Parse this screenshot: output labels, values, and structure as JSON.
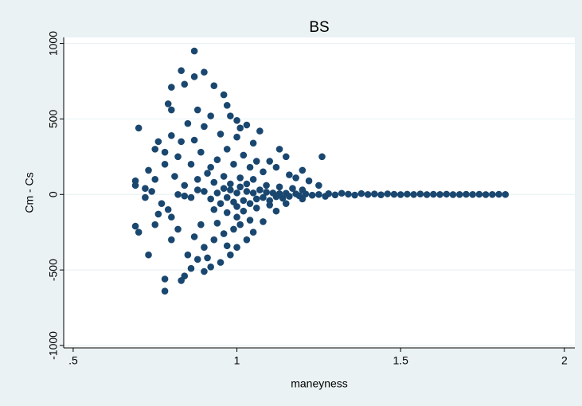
{
  "chart_data": {
    "type": "scatter",
    "title": "BS",
    "x_label": "maneyness",
    "y_label": "Cm - Cs",
    "color": "#1a476f",
    "grid": true,
    "xlim": [
      0.471,
      2.032
    ],
    "ylim": [
      -1016,
      1040
    ],
    "xticks": [
      {
        "value": 0.5,
        "label": ".5"
      },
      1,
      1.5,
      2
    ],
    "yticks": [
      -1000,
      -500,
      0,
      500,
      1000
    ],
    "x": [
      0.87,
      0.83,
      0.9,
      0.87,
      0.8,
      0.84,
      0.93,
      0.96,
      0.79,
      0.8,
      0.88,
      0.97,
      0.92,
      0.98,
      1.0,
      1.03,
      1.01,
      1.07,
      0.85,
      0.9,
      0.87,
      0.83,
      0.76,
      0.7,
      0.78,
      0.75,
      0.8,
      0.95,
      1.0,
      1.05,
      1.13,
      1.15,
      1.26,
      1.1,
      1.2,
      0.82,
      0.86,
      0.89,
      0.92,
      0.94,
      0.97,
      0.99,
      1.02,
      1.04,
      1.06,
      1.08,
      1.12,
      1.16,
      1.18,
      1.22,
      1.25,
      0.81,
      0.84,
      0.88,
      0.91,
      0.93,
      0.96,
      0.98,
      1.01,
      1.03,
      1.05,
      1.09,
      1.13,
      1.17,
      1.2,
      0.69,
      0.69,
      0.72,
      0.73,
      0.74,
      0.77,
      0.79,
      0.78,
      0.8,
      0.76,
      0.72,
      0.75,
      0.9,
      0.92,
      0.94,
      0.95,
      0.96,
      0.97,
      0.98,
      0.99,
      1.0,
      1.0,
      1.01,
      1.02,
      1.03,
      1.04,
      1.05,
      1.06,
      1.07,
      1.08,
      1.09,
      1.1,
      1.11,
      1.12,
      1.13,
      1.14,
      1.15,
      1.16,
      1.18,
      1.19,
      1.21,
      1.23,
      0.86,
      0.88,
      0.84,
      0.82,
      0.93,
      0.97,
      1.0,
      1.02,
      1.06,
      1.1,
      0.78,
      0.78,
      0.83,
      0.84,
      0.86,
      0.9,
      0.92,
      0.73,
      0.69,
      0.7,
      0.75,
      0.8,
      0.85,
      0.88,
      0.95,
      0.98,
      1.0,
      1.03,
      1.05,
      1.08,
      1.12,
      0.82,
      0.87,
      0.9,
      0.93,
      0.96,
      0.99,
      1.01,
      1.04,
      0.89,
      0.94,
      0.91,
      0.97,
      1.15,
      1.2,
      1.25,
      1.28,
      1.3,
      1.32,
      1.34,
      1.36,
      1.38,
      1.4,
      1.42,
      1.44,
      1.46,
      1.48,
      1.5,
      1.52,
      1.54,
      1.56,
      1.58,
      1.6,
      1.62,
      1.64,
      1.66,
      1.68,
      1.7,
      1.72,
      1.74,
      1.76,
      1.78,
      1.8,
      1.82,
      1.27
    ],
    "values": [
      950,
      820,
      810,
      780,
      710,
      730,
      720,
      660,
      600,
      560,
      560,
      590,
      520,
      520,
      490,
      460,
      440,
      420,
      470,
      450,
      360,
      350,
      350,
      440,
      280,
      300,
      390,
      400,
      380,
      340,
      300,
      250,
      250,
      220,
      160,
      250,
      200,
      280,
      180,
      230,
      300,
      200,
      260,
      180,
      220,
      150,
      180,
      130,
      110,
      90,
      60,
      120,
      60,
      100,
      140,
      80,
      120,
      70,
      110,
      70,
      100,
      60,
      50,
      40,
      30,
      90,
      60,
      40,
      160,
      20,
      -60,
      -100,
      200,
      -150,
      -130,
      -20,
      100,
      20,
      -30,
      10,
      -60,
      40,
      -20,
      30,
      -50,
      10,
      -80,
      50,
      -40,
      20,
      -60,
      10,
      -30,
      30,
      -20,
      15,
      -40,
      10,
      -15,
      5,
      -25,
      8,
      -12,
      4,
      -8,
      3,
      -5,
      -20,
      30,
      -10,
      0,
      -100,
      -120,
      -150,
      -110,
      -90,
      -70,
      -640,
      -560,
      -570,
      -540,
      -490,
      -510,
      -480,
      -400,
      -210,
      -250,
      -200,
      -300,
      -400,
      -430,
      -450,
      -400,
      -350,
      -300,
      -250,
      -180,
      -110,
      -230,
      -280,
      -350,
      -300,
      -260,
      -230,
      -200,
      -170,
      -200,
      -190,
      -420,
      -340,
      -60,
      -30,
      0,
      5,
      -3,
      8,
      2,
      -4,
      6,
      0,
      3,
      -2,
      4,
      1,
      -1,
      2,
      0,
      3,
      -1,
      1,
      0,
      2,
      -1,
      0,
      1,
      0,
      1,
      -1,
      0,
      1,
      0,
      -12
    ]
  }
}
